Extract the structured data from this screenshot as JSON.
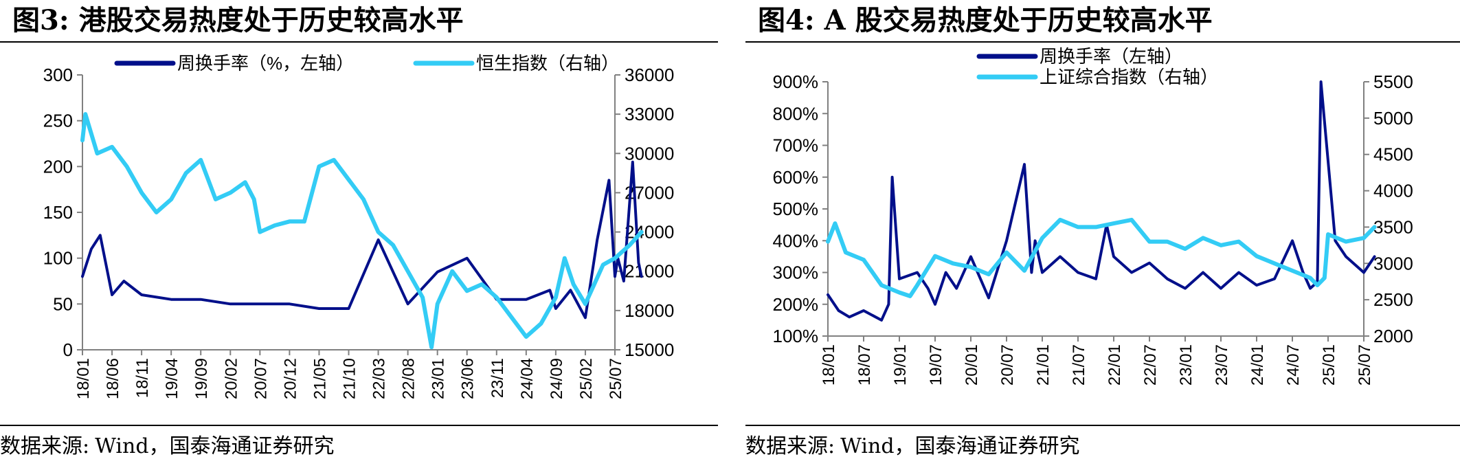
{
  "colors": {
    "turnover": "#000f8a",
    "index": "#33ccf5",
    "axis": "#808080"
  },
  "figures": [
    {
      "title_prefix": "图3:",
      "title_text": "港股交易热度处于历史较高水平",
      "source_label": "数据来源:",
      "source_text": "Wind，国泰海通证券研究"
    },
    {
      "title_prefix": "图4:",
      "title_text": "A 股交易热度处于历史较高水平",
      "source_label": "数据来源:",
      "source_text": "Wind，国泰海通证券研究"
    }
  ],
  "chart_data": [
    {
      "type": "line",
      "title": "港股交易热度处于历史较高水平",
      "legend_position": "top",
      "x_ticks": [
        "18/01",
        "18/06",
        "18/11",
        "19/04",
        "19/09",
        "20/02",
        "20/07",
        "20/12",
        "21/05",
        "21/10",
        "22/03",
        "22/08",
        "23/01",
        "23/06",
        "23/11",
        "24/04",
        "24/09",
        "25/02",
        "25/07"
      ],
      "y_left": {
        "label": "周换手率（%，左轴）",
        "min": 0,
        "max": 300,
        "ticks": [
          "0",
          "50",
          "100",
          "150",
          "200",
          "250",
          "300"
        ]
      },
      "y_right": {
        "label": "恒生指数（右轴）",
        "min": 15000,
        "max": 36000,
        "ticks": [
          "15000",
          "18000",
          "21000",
          "24000",
          "27000",
          "30000",
          "33000",
          "36000"
        ]
      },
      "series": [
        {
          "name": "周换手率（%，左轴）",
          "axis": "left",
          "x": [
            0,
            0.3,
            0.6,
            1,
            1.4,
            2,
            3,
            4,
            5,
            6,
            7,
            8,
            9,
            10,
            11,
            12,
            13,
            14,
            15,
            15.8,
            16,
            16.5,
            17,
            17.4,
            17.8,
            18,
            18.1,
            18.3,
            18.6,
            18.8,
            18.9
          ],
          "values": [
            80,
            110,
            125,
            60,
            75,
            60,
            55,
            55,
            50,
            50,
            50,
            45,
            45,
            120,
            50,
            85,
            100,
            55,
            55,
            65,
            45,
            65,
            35,
            120,
            185,
            80,
            100,
            75,
            205,
            95,
            80
          ]
        },
        {
          "name": "恒生指数（右轴）",
          "axis": "right",
          "x": [
            0,
            0.1,
            0.5,
            1,
            1.5,
            2,
            2.5,
            3,
            3.5,
            4,
            4.5,
            5,
            5.5,
            5.8,
            6,
            6.5,
            7,
            7.5,
            8,
            8.5,
            9,
            9.5,
            10,
            10.5,
            11,
            11.5,
            11.8,
            12,
            12.5,
            13,
            13.5,
            14,
            14.5,
            15,
            15.5,
            16,
            16.3,
            16.6,
            17,
            17.3,
            17.6,
            18,
            18.5,
            18.9
          ],
          "values": [
            31000,
            33000,
            30000,
            30500,
            29000,
            27000,
            25500,
            26500,
            28500,
            29500,
            26500,
            27000,
            27800,
            26500,
            24000,
            24500,
            24800,
            24800,
            29000,
            29500,
            28000,
            26500,
            24000,
            23000,
            21000,
            19000,
            15200,
            18500,
            21000,
            19500,
            20000,
            19000,
            17500,
            16000,
            17000,
            19000,
            22000,
            20000,
            18500,
            20000,
            21500,
            22000,
            23000,
            24000
          ]
        }
      ]
    },
    {
      "type": "line",
      "title": "A 股交易热度处于历史较高水平",
      "legend_position": "top",
      "x_ticks": [
        "18/01",
        "18/07",
        "19/01",
        "19/07",
        "20/01",
        "20/07",
        "21/01",
        "21/07",
        "22/01",
        "22/07",
        "23/01",
        "23/07",
        "24/01",
        "24/07",
        "25/01",
        "25/07"
      ],
      "y_left": {
        "label": "周换手率（左轴）",
        "min": 100,
        "max": 900,
        "ticks": [
          "100%",
          "200%",
          "300%",
          "400%",
          "500%",
          "600%",
          "700%",
          "800%",
          "900%"
        ]
      },
      "y_right": {
        "label": "上证综合指数（右轴）",
        "min": 2000,
        "max": 5500,
        "ticks": [
          "2000",
          "2500",
          "3000",
          "3500",
          "4000",
          "4500",
          "5000",
          "5500"
        ]
      },
      "series": [
        {
          "name": "周换手率（左轴）",
          "axis": "left",
          "x": [
            0,
            0.3,
            0.6,
            1,
            1.5,
            1.7,
            1.8,
            2,
            2.5,
            2.8,
            3,
            3.3,
            3.6,
            4,
            4.5,
            5,
            5.5,
            5.7,
            5.8,
            6,
            6.5,
            7,
            7.5,
            7.8,
            8,
            8.5,
            9,
            9.5,
            10,
            10.5,
            11,
            11.5,
            12,
            12.5,
            13,
            13.3,
            13.5,
            13.7,
            13.8,
            14,
            14.2,
            14.5,
            15,
            15.3
          ],
          "values": [
            230,
            180,
            160,
            180,
            150,
            200,
            600,
            280,
            300,
            250,
            200,
            300,
            250,
            350,
            220,
            400,
            640,
            300,
            400,
            300,
            350,
            300,
            280,
            450,
            350,
            300,
            330,
            280,
            250,
            300,
            250,
            300,
            260,
            280,
            400,
            300,
            250,
            270,
            900,
            650,
            400,
            350,
            300,
            350
          ]
        },
        {
          "name": "上证综合指数（右轴）",
          "axis": "right",
          "x": [
            0,
            0.2,
            0.5,
            1,
            1.5,
            2,
            2.3,
            2.5,
            3,
            3.5,
            4,
            4.5,
            5,
            5.5,
            6,
            6.5,
            7,
            7.5,
            8,
            8.5,
            9,
            9.5,
            10,
            10.5,
            11,
            11.5,
            12,
            12.5,
            13,
            13.5,
            13.7,
            13.9,
            14,
            14.5,
            15,
            15.3
          ],
          "values": [
            3300,
            3550,
            3150,
            3050,
            2700,
            2600,
            2550,
            2700,
            3100,
            3000,
            2950,
            2850,
            3150,
            2900,
            3350,
            3600,
            3500,
            3500,
            3550,
            3600,
            3300,
            3300,
            3200,
            3350,
            3250,
            3300,
            3100,
            3000,
            2900,
            2800,
            2700,
            2800,
            3400,
            3300,
            3350,
            3500
          ]
        }
      ]
    }
  ]
}
